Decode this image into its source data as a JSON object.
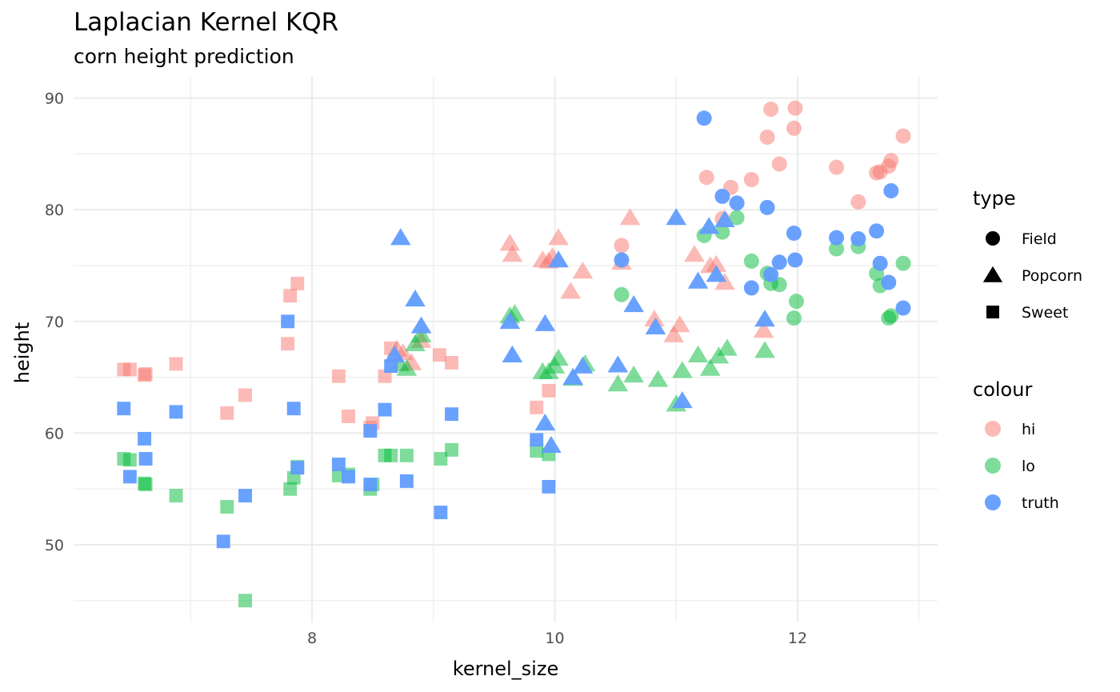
{
  "chart_data": {
    "type": "scatter",
    "title": "Laplacian Kernel KQR",
    "subtitle": "corn height prediction",
    "xlabel": "kernel_size",
    "ylabel": "height",
    "xlim": [
      6.28,
      13.05
    ],
    "ylim": [
      44.2,
      90.7
    ],
    "x_ticks": [
      8,
      10,
      12
    ],
    "y_ticks": [
      50,
      60,
      70,
      80,
      90
    ],
    "grid": true,
    "legend_position": "right",
    "legends": [
      {
        "title": "type",
        "entries": [
          {
            "label": "Field",
            "shape": "circle"
          },
          {
            "label": "Popcorn",
            "shape": "triangle"
          },
          {
            "label": "Sweet",
            "shape": "square"
          }
        ]
      },
      {
        "title": "colour",
        "entries": [
          {
            "label": "hi",
            "color": "#F8766D"
          },
          {
            "label": "lo",
            "color": "#00BA38"
          },
          {
            "label": "truth",
            "color": "#619CFF"
          }
        ]
      }
    ],
    "series": [
      {
        "name": "hi",
        "color": "#F8766D",
        "opacity": 0.5,
        "points": {
          "Field": [
            [
              10.55,
              76.8
            ],
            [
              11.25,
              82.9
            ],
            [
              11.45,
              82.0
            ],
            [
              11.62,
              82.7
            ],
            [
              11.75,
              86.5
            ],
            [
              11.78,
              89.0
            ],
            [
              11.85,
              84.1
            ],
            [
              11.97,
              87.3
            ],
            [
              11.98,
              89.1
            ],
            [
              12.32,
              83.8
            ],
            [
              12.5,
              80.7
            ],
            [
              12.65,
              83.3
            ],
            [
              12.68,
              83.4
            ],
            [
              12.75,
              83.9
            ],
            [
              12.77,
              84.4
            ],
            [
              12.87,
              86.6
            ],
            [
              11.38,
              79.2
            ]
          ],
          "Popcorn": [
            [
              9.63,
              77.0
            ],
            [
              9.65,
              76.0
            ],
            [
              9.9,
              75.5
            ],
            [
              9.95,
              75.4
            ],
            [
              9.98,
              75.8
            ],
            [
              10.03,
              77.5
            ],
            [
              10.13,
              72.7
            ],
            [
              10.23,
              74.5
            ],
            [
              10.55,
              75.3
            ],
            [
              10.62,
              79.3
            ],
            [
              10.82,
              70.2
            ],
            [
              10.98,
              68.8
            ],
            [
              11.03,
              69.7
            ],
            [
              11.15,
              76.0
            ],
            [
              11.28,
              75.0
            ],
            [
              11.33,
              75.1
            ],
            [
              11.4,
              73.5
            ],
            [
              11.72,
              69.2
            ],
            [
              8.7,
              67.5
            ],
            [
              8.75,
              67.2
            ],
            [
              8.82,
              66.3
            ],
            [
              8.9,
              68.3
            ]
          ],
          "Sweet": [
            [
              6.45,
              65.7
            ],
            [
              6.5,
              65.7
            ],
            [
              6.62,
              65.2
            ],
            [
              6.63,
              65.3
            ],
            [
              6.88,
              66.2
            ],
            [
              7.3,
              61.8
            ],
            [
              7.45,
              63.4
            ],
            [
              7.8,
              68.0
            ],
            [
              7.82,
              72.3
            ],
            [
              7.88,
              73.4
            ],
            [
              8.22,
              65.1
            ],
            [
              8.3,
              61.5
            ],
            [
              8.48,
              60.5
            ],
            [
              8.5,
              60.9
            ],
            [
              8.6,
              65.1
            ],
            [
              8.65,
              67.6
            ],
            [
              9.05,
              67.0
            ],
            [
              9.15,
              66.3
            ],
            [
              9.85,
              62.3
            ],
            [
              9.95,
              63.8
            ]
          ]
        }
      },
      {
        "name": "lo",
        "color": "#00BA38",
        "opacity": 0.5,
        "points": {
          "Field": [
            [
              10.55,
              72.4
            ],
            [
              11.23,
              77.7
            ],
            [
              11.38,
              78.0
            ],
            [
              11.5,
              79.3
            ],
            [
              11.62,
              75.4
            ],
            [
              11.75,
              74.3
            ],
            [
              11.78,
              73.4
            ],
            [
              11.85,
              73.3
            ],
            [
              11.97,
              70.3
            ],
            [
              11.99,
              71.8
            ],
            [
              12.32,
              76.5
            ],
            [
              12.5,
              76.7
            ],
            [
              12.65,
              74.3
            ],
            [
              12.68,
              73.2
            ],
            [
              12.75,
              70.3
            ],
            [
              12.77,
              70.5
            ],
            [
              12.87,
              75.2
            ]
          ],
          "Popcorn": [
            [
              9.63,
              70.5
            ],
            [
              9.67,
              70.7
            ],
            [
              9.9,
              65.5
            ],
            [
              9.95,
              65.5
            ],
            [
              10.0,
              66.0
            ],
            [
              10.03,
              66.7
            ],
            [
              10.15,
              64.9
            ],
            [
              10.25,
              66.2
            ],
            [
              10.52,
              64.4
            ],
            [
              10.65,
              65.2
            ],
            [
              10.85,
              64.8
            ],
            [
              11.0,
              62.6
            ],
            [
              11.05,
              65.6
            ],
            [
              11.18,
              67.0
            ],
            [
              11.28,
              65.8
            ],
            [
              11.35,
              66.9
            ],
            [
              11.42,
              67.6
            ],
            [
              11.73,
              67.4
            ],
            [
              8.72,
              66.2
            ],
            [
              8.78,
              65.8
            ],
            [
              8.85,
              68.0
            ],
            [
              8.9,
              68.8
            ]
          ],
          "Sweet": [
            [
              6.45,
              57.7
            ],
            [
              6.5,
              57.6
            ],
            [
              6.62,
              55.5
            ],
            [
              6.63,
              55.4
            ],
            [
              6.88,
              54.4
            ],
            [
              7.3,
              53.4
            ],
            [
              7.45,
              45.0
            ],
            [
              7.82,
              55.0
            ],
            [
              7.85,
              56.0
            ],
            [
              7.88,
              57.0
            ],
            [
              8.22,
              56.2
            ],
            [
              8.3,
              56.3
            ],
            [
              8.48,
              55.0
            ],
            [
              8.5,
              55.4
            ],
            [
              8.6,
              58.0
            ],
            [
              8.65,
              58.0
            ],
            [
              8.78,
              58.0
            ],
            [
              9.06,
              57.7
            ],
            [
              9.15,
              58.5
            ],
            [
              9.85,
              58.4
            ],
            [
              9.95,
              58.1
            ]
          ]
        }
      },
      {
        "name": "truth",
        "color": "#619CFF",
        "opacity": 0.95,
        "points": {
          "Field": [
            [
              10.55,
              75.5
            ],
            [
              11.23,
              88.2
            ],
            [
              11.38,
              81.2
            ],
            [
              11.5,
              80.6
            ],
            [
              11.62,
              73.0
            ],
            [
              11.75,
              80.2
            ],
            [
              11.78,
              74.2
            ],
            [
              11.85,
              75.3
            ],
            [
              11.97,
              77.9
            ],
            [
              11.98,
              75.5
            ],
            [
              12.32,
              77.5
            ],
            [
              12.5,
              77.4
            ],
            [
              12.65,
              78.1
            ],
            [
              12.68,
              75.2
            ],
            [
              12.75,
              73.5
            ],
            [
              12.77,
              81.7
            ],
            [
              12.87,
              71.2
            ]
          ],
          "Popcorn": [
            [
              8.73,
              77.5
            ],
            [
              8.85,
              72.0
            ],
            [
              8.9,
              69.6
            ],
            [
              8.68,
              67.0
            ],
            [
              9.63,
              70.0
            ],
            [
              9.65,
              67.0
            ],
            [
              9.92,
              69.8
            ],
            [
              9.92,
              60.9
            ],
            [
              9.97,
              58.9
            ],
            [
              10.03,
              75.5
            ],
            [
              10.15,
              65.0
            ],
            [
              10.23,
              66.0
            ],
            [
              10.52,
              66.1
            ],
            [
              10.65,
              71.5
            ],
            [
              10.83,
              69.5
            ],
            [
              11.0,
              79.3
            ],
            [
              11.05,
              62.9
            ],
            [
              11.18,
              73.6
            ],
            [
              11.27,
              78.5
            ],
            [
              11.33,
              74.2
            ],
            [
              11.4,
              79.1
            ],
            [
              11.73,
              70.2
            ]
          ],
          "Sweet": [
            [
              6.45,
              62.2
            ],
            [
              6.5,
              56.1
            ],
            [
              6.62,
              59.5
            ],
            [
              6.63,
              57.7
            ],
            [
              6.88,
              61.9
            ],
            [
              7.27,
              50.3
            ],
            [
              7.45,
              54.4
            ],
            [
              7.8,
              70.0
            ],
            [
              7.85,
              62.2
            ],
            [
              7.88,
              56.9
            ],
            [
              8.22,
              57.2
            ],
            [
              8.3,
              56.1
            ],
            [
              8.48,
              55.4
            ],
            [
              8.48,
              60.2
            ],
            [
              8.6,
              62.1
            ],
            [
              8.65,
              66.0
            ],
            [
              8.78,
              55.7
            ],
            [
              9.06,
              52.9
            ],
            [
              9.15,
              61.7
            ],
            [
              9.85,
              59.4
            ],
            [
              9.95,
              55.2
            ]
          ]
        }
      }
    ]
  }
}
